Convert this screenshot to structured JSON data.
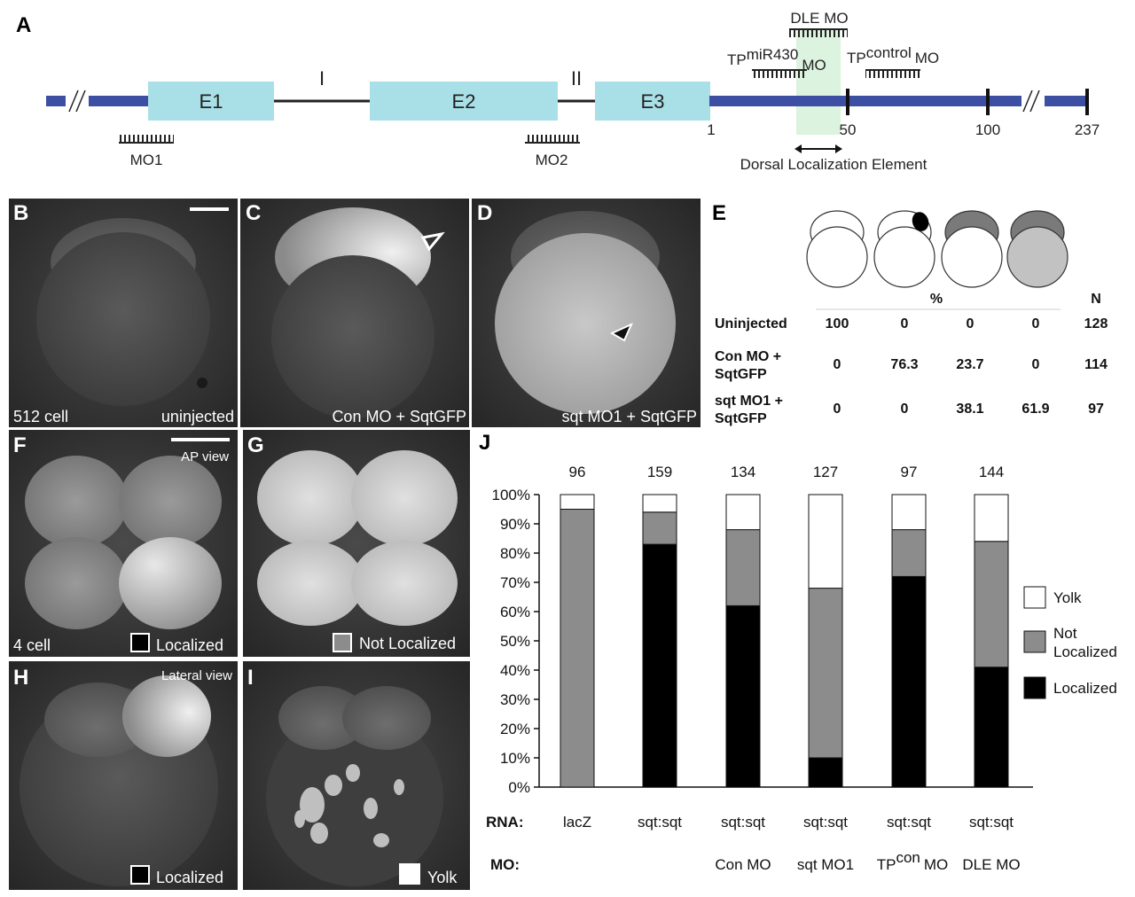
{
  "panelA": {
    "letter": "A",
    "exons": [
      "E1",
      "E2",
      "E3"
    ],
    "introns": [
      "I",
      "II"
    ],
    "mo1": "MO1",
    "mo2": "MO2",
    "dle_mo": "DLE MO",
    "tp_mir_prefix": "TP",
    "tp_mir_sup": "miR430",
    "tp_mir_suffix": "MO",
    "tp_con_prefix": "TP",
    "tp_con_sup": "control",
    "tp_con_suffix": "MO",
    "utr_ticks": [
      "1",
      "50",
      "100",
      "237"
    ],
    "dle_label": "Dorsal Localization Element"
  },
  "micrographs": {
    "B": {
      "letter": "B",
      "left": "512 cell",
      "right": "uninjected"
    },
    "C": {
      "letter": "C",
      "right": "Con MO + SqtGFP"
    },
    "D": {
      "letter": "D",
      "right": "sqt MO1 + SqtGFP"
    },
    "F": {
      "letter": "F",
      "left": "4 cell",
      "top_right": "AP view",
      "legend": "Localized"
    },
    "G": {
      "letter": "G",
      "legend": "Not Localized"
    },
    "H": {
      "letter": "H",
      "top_right": "Lateral view",
      "legend": "Localized"
    },
    "I": {
      "letter": "I",
      "legend": "Yolk"
    }
  },
  "panelE": {
    "letter": "E",
    "header_pct": "%",
    "header_n": "N",
    "rows": [
      {
        "label1": "Uninjected",
        "label2": "",
        "values": [
          "100",
          "0",
          "0",
          "0"
        ],
        "n": "128"
      },
      {
        "label1": "Con MO +",
        "label2": "SqtGFP",
        "values": [
          "0",
          "76.3",
          "23.7",
          "0"
        ],
        "n": "114"
      },
      {
        "label1": "sqt MO1 +",
        "label2": "SqtGFP",
        "values": [
          "0",
          "0",
          "38.1",
          "61.9"
        ],
        "n": "97"
      }
    ]
  },
  "chart_data": {
    "panel": "J",
    "type": "bar",
    "stacked": true,
    "categories": [
      "lacZ",
      "sqt:sqt",
      "sqt:sqt",
      "sqt:sqt",
      "sqt:sqt",
      "sqt:sqt"
    ],
    "mo_labels": [
      "",
      "",
      "Con MO",
      "sqt MO1",
      "TP|con|MO",
      "DLE MO"
    ],
    "n_labels": [
      "96",
      "159",
      "134",
      "127",
      "97",
      "144"
    ],
    "series": [
      {
        "name": "Localized",
        "color": "#000000",
        "values": [
          0,
          83,
          62,
          10,
          72,
          41
        ]
      },
      {
        "name": "Not Localized",
        "color": "#8c8c8c",
        "values": [
          95,
          11,
          26,
          58,
          16,
          43
        ]
      },
      {
        "name": "Yolk",
        "color": "#ffffff",
        "values": [
          5,
          6,
          12,
          32,
          12,
          16
        ]
      }
    ],
    "yticks": [
      "0%",
      "10%",
      "20%",
      "30%",
      "40%",
      "50%",
      "60%",
      "70%",
      "80%",
      "90%",
      "100%"
    ],
    "ylim": [
      0,
      100
    ],
    "row_label_rna": "RNA:",
    "row_label_mo": "MO:",
    "legend_order": [
      "Yolk",
      "Not Localized",
      "Localized"
    ],
    "legend_labels": [
      "Yolk",
      "Not",
      "Localized",
      "Localized"
    ]
  }
}
